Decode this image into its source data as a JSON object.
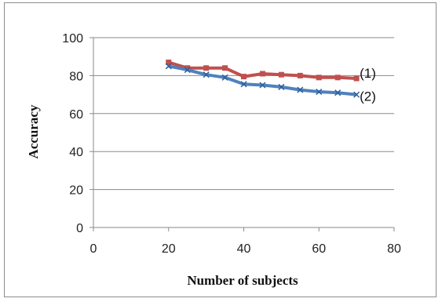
{
  "chart_data": {
    "type": "line",
    "xlabel": "Number of subjects",
    "ylabel": "Accuracy",
    "xlim": [
      0,
      80
    ],
    "ylim": [
      0,
      100
    ],
    "x_ticks": [
      "0",
      "20",
      "40",
      "60",
      "80"
    ],
    "y_ticks": [
      "0",
      "20",
      "40",
      "60",
      "80",
      "100"
    ],
    "grid": "horizontal",
    "legend": "none",
    "x": [
      20,
      25,
      30,
      35,
      40,
      45,
      50,
      55,
      60,
      65,
      70
    ],
    "series": [
      {
        "name": "(1)",
        "color": "#c0504d",
        "marker": "square",
        "values": [
          87,
          84,
          84,
          84,
          79.5,
          81,
          80.5,
          80,
          79,
          79,
          78.5
        ]
      },
      {
        "name": "(2)",
        "color": "#4f81bd",
        "marker": "x",
        "values": [
          85,
          83,
          80.5,
          79,
          75.5,
          75,
          74,
          72.5,
          71.5,
          71,
          70
        ]
      }
    ]
  }
}
